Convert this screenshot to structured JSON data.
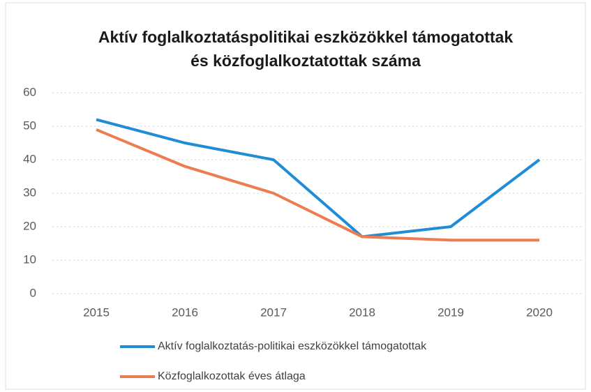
{
  "chart_data": {
    "type": "line",
    "title": [
      "Aktív foglalkoztatáspolitikai eszközökkel támogatottak",
      "és közfoglalkoztatottak száma"
    ],
    "categories": [
      "2015",
      "2016",
      "2017",
      "2018",
      "2019",
      "2020"
    ],
    "series": [
      {
        "name": "Aktív foglalkoztatás-politikai eszközökkel támogatottak",
        "color": "#1f8dd6",
        "values": [
          52,
          45,
          40,
          17,
          20,
          40
        ]
      },
      {
        "name": "Közfoglalkozottak éves átlaga",
        "color": "#ed7d51",
        "values": [
          49,
          38,
          30,
          17,
          16,
          16
        ]
      }
    ],
    "ylim": [
      0,
      60
    ],
    "yticks": [
      0,
      10,
      20,
      30,
      40,
      50,
      60
    ],
    "grid": true,
    "legend": "bottom"
  }
}
